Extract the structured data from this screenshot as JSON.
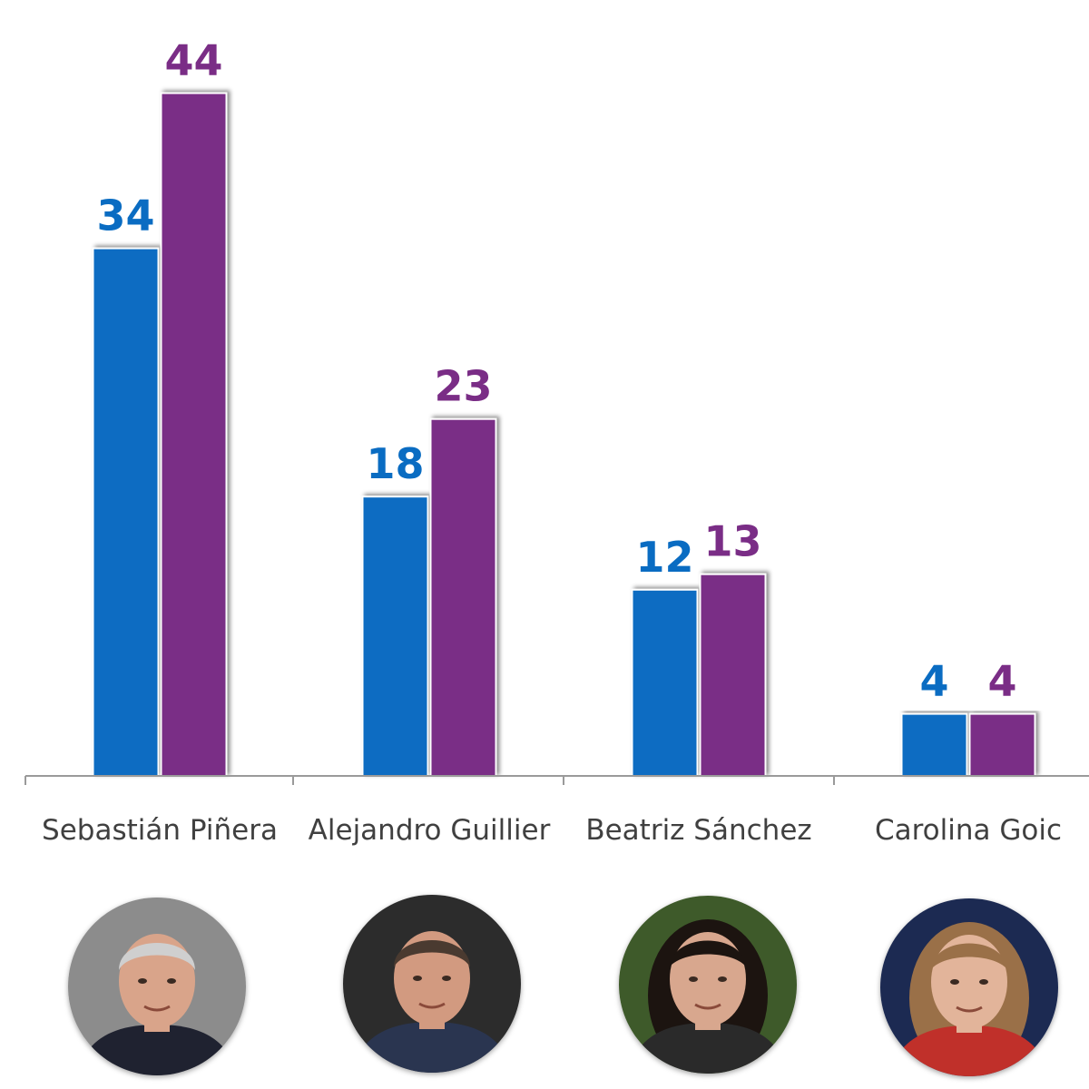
{
  "chart_data": {
    "type": "bar",
    "title": "",
    "xlabel": "",
    "ylabel": "",
    "ylim": [
      0,
      48
    ],
    "grid": false,
    "legend": "none",
    "categories": [
      "Sebastián Piñera",
      "Alejandro Guillier",
      "Beatriz Sánchez",
      "Carolina Goic"
    ],
    "series": [
      {
        "color": "#0a6cc2",
        "values": [
          34,
          18,
          12,
          4
        ]
      },
      {
        "color": "#7a2d86",
        "values": [
          44,
          23,
          13,
          4
        ]
      }
    ]
  },
  "portraits": [
    {
      "icon": "portrait-sebastian-pinera-icon",
      "skin": "#d9a48a",
      "hair": "#cfcfcf",
      "backdrop": "#8c8c8c",
      "clothes": "#1f2230"
    },
    {
      "icon": "portrait-alejandro-guillier-icon",
      "skin": "#d29a80",
      "hair": "#4a3a30",
      "backdrop": "#2c2c2c",
      "clothes": "#2a3550"
    },
    {
      "icon": "portrait-beatriz-sanchez-icon",
      "skin": "#d8a78e",
      "hair": "#1c1410",
      "backdrop": "#3e5a2a",
      "clothes": "#2a2a2a"
    },
    {
      "icon": "portrait-carolina-goic-icon",
      "skin": "#e2b49a",
      "hair": "#9a7048",
      "backdrop": "#1c2a52",
      "clothes": "#c0302a"
    }
  ]
}
